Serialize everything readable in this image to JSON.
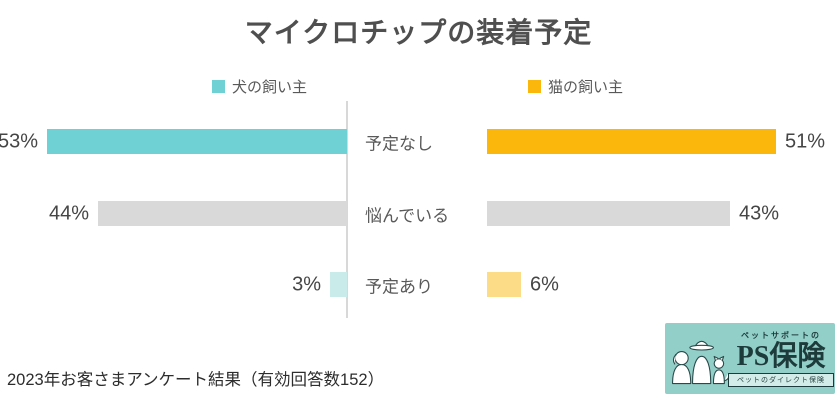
{
  "title": "マイクロチップの装着予定",
  "chart_data": {
    "type": "bar",
    "layout": "butterfly-horizontal",
    "title": "マイクロチップの装着予定",
    "categories": [
      "予定なし",
      "悩んでいる",
      "予定あり"
    ],
    "series": [
      {
        "name": "犬の飼い主",
        "side": "left",
        "values": [
          53,
          44,
          3
        ],
        "colors": [
          "#6fd1d4",
          "#d9d9d9",
          "#c9ecea"
        ]
      },
      {
        "name": "猫の飼い主",
        "side": "right",
        "values": [
          51,
          43,
          6
        ],
        "colors": [
          "#fcb70d",
          "#d9d9d9",
          "#fcdc87"
        ]
      }
    ],
    "value_suffix": "%",
    "axis_max": 61,
    "grid": false,
    "legend_position": "top"
  },
  "footer": {
    "note": "2023年お客さまアンケート結果（有効回答数152）"
  },
  "logo": {
    "tagline_top": "ペットサポートの",
    "brand": "PS保険",
    "tagline_bottom": "ペットのダイレクト保険",
    "bg_color": "#93cfc9",
    "text_color": "#1e3b3b"
  },
  "colors": {
    "dog_primary": "#6fd1d4",
    "cat_primary": "#fcb70d",
    "neutral_bar": "#d9d9d9",
    "dog_light": "#c9ecea",
    "cat_light": "#fcdc87",
    "divider": "#d8d8d8",
    "title_text": "#4f4f4f",
    "label_text": "#595959"
  }
}
